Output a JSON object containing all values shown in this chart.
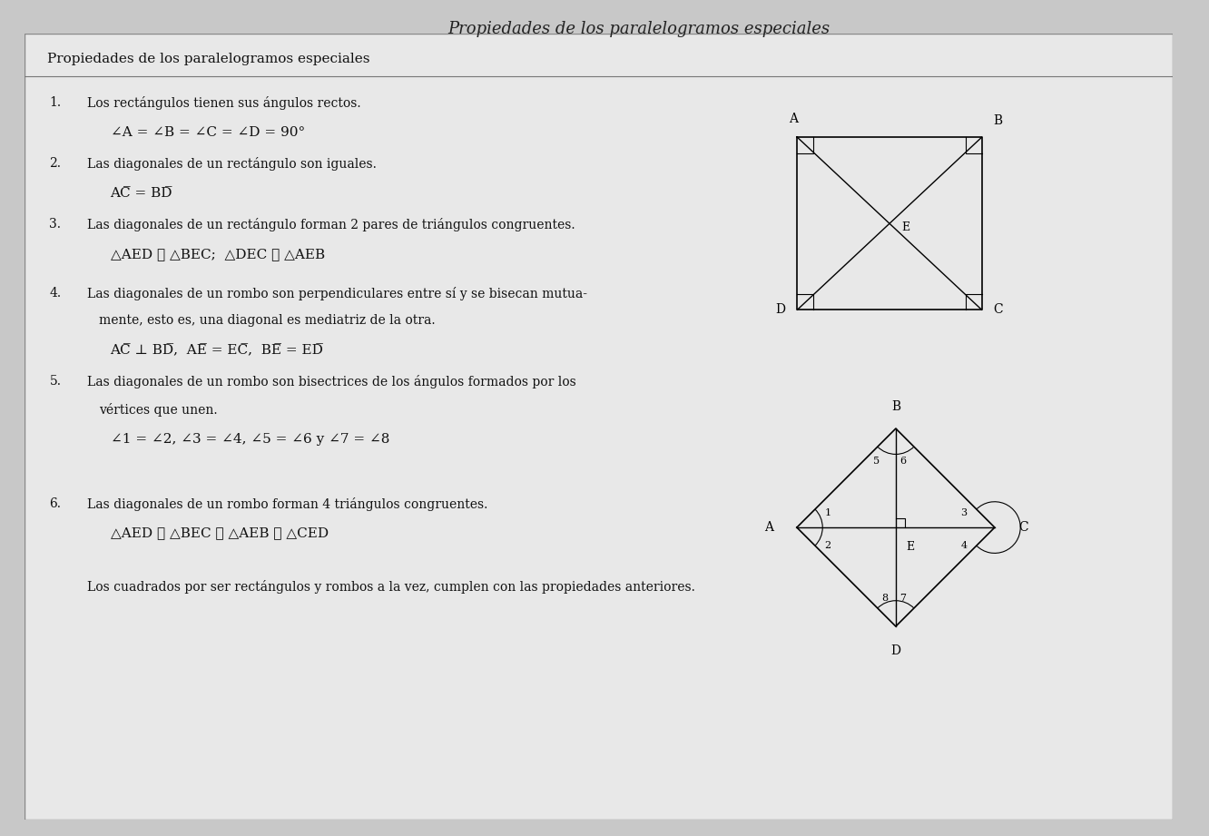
{
  "bg_color": "#c8c8c8",
  "panel_color": "#e8e8e8",
  "title": "Propiedades de los paralelogramos especiales",
  "header": "Propiedades de los paralelogramos especiales",
  "lines": [
    {
      "num": "1.",
      "text": "Los rectángulos tienen sus ángulos rectos.",
      "indent": 1,
      "math": false
    },
    {
      "num": "",
      "text": "∠A = ∠B = ∠C = ∠D = 90°",
      "indent": 2,
      "math": true
    },
    {
      "num": "2.",
      "text": "Las diagonales de un rectángulo son iguales.",
      "indent": 1,
      "math": false
    },
    {
      "num": "",
      "text": "AC̅ = BD̅",
      "indent": 2,
      "math": true
    },
    {
      "num": "3.",
      "text": "Las diagonales de un rectángulo forman 2 pares de triángulos congruentes.",
      "indent": 1,
      "math": false
    },
    {
      "num": "",
      "text": "△AED ≅ △BEC;  △DEC ≅ △AEB",
      "indent": 2,
      "math": true
    },
    {
      "num": "4.",
      "text": "Las diagonales de un rombo son perpendiculares entre sí y se bisecan mutua-",
      "indent": 1,
      "math": false
    },
    {
      "num": "",
      "text": "mente, esto es, una diagonal es mediatriz de la otra.",
      "indent": 2,
      "math": false
    },
    {
      "num": "",
      "text": "AC̅ ⊥ BD̅,  AE̅ = EC̅,  BE̅ = ED̅",
      "indent": 2,
      "math": true
    },
    {
      "num": "5.",
      "text": "Las diagonales de un rombo son bisectrices de los ángulos formados por los",
      "indent": 1,
      "math": false
    },
    {
      "num": "",
      "text": "vértices que unen.",
      "indent": 2,
      "math": false
    },
    {
      "num": "",
      "text": "∠1 = ∠2, ∠3 = ∠4, ∠5 = ∠6 y ∠7 = ∠8",
      "indent": 2,
      "math": true
    },
    {
      "num": "6.",
      "text": "Las diagonales de un rombo forman 4 triángulos congruentes.",
      "indent": 1,
      "math": false
    },
    {
      "num": "",
      "text": "△AED ≅ △BEC ≅ △AEB ≅ △CED",
      "indent": 2,
      "math": true
    },
    {
      "num": "",
      "text": "Los cuadrados por ser rectángulos y rombos a la vez, cumplen con las propiedades anteriores.",
      "indent": 1,
      "math": false
    }
  ]
}
